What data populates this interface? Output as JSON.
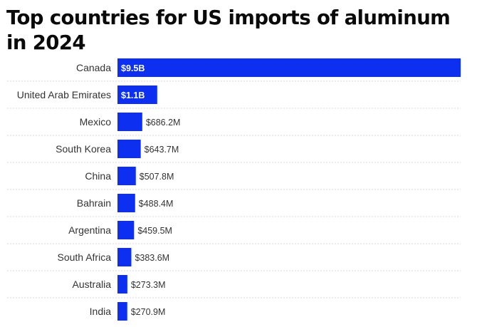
{
  "chart_data": {
    "type": "bar",
    "orientation": "horizontal",
    "title": "Top countries for US imports of aluminum in 2024",
    "categories": [
      "Canada",
      "United Arab Emirates",
      "Mexico",
      "South Korea",
      "China",
      "Bahrain",
      "Argentina",
      "South Africa",
      "Australia",
      "India"
    ],
    "values": [
      9500,
      1100,
      686.2,
      643.7,
      507.8,
      488.4,
      459.5,
      383.6,
      273.3,
      270.9
    ],
    "unit": "million USD",
    "value_labels": [
      "$9.5B",
      "$1.1B",
      "$686.2M",
      "$643.7M",
      "$507.8M",
      "$488.4M",
      "$459.5M",
      "$383.6M",
      "$273.3M",
      "$270.9M"
    ],
    "bar_color": "#0d2ff0",
    "grid": false,
    "legend": "none"
  }
}
